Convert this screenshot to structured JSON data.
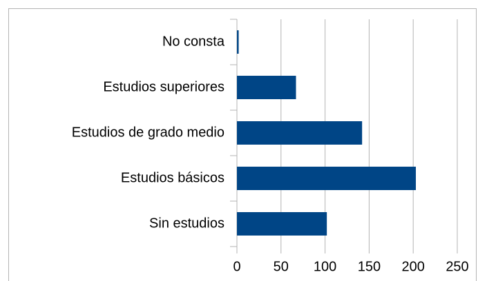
{
  "chart_data": {
    "type": "bar",
    "orientation": "horizontal",
    "categories": [
      "No consta",
      "Estudios superiores",
      "Estudios de grado medio",
      "Estudios básicos",
      "Sin estudios"
    ],
    "values": [
      2,
      67,
      142,
      203,
      102
    ],
    "color": "#004586",
    "xlim": [
      0,
      250
    ],
    "xticks": [
      0,
      50,
      100,
      150,
      200,
      250
    ],
    "grid": true
  }
}
